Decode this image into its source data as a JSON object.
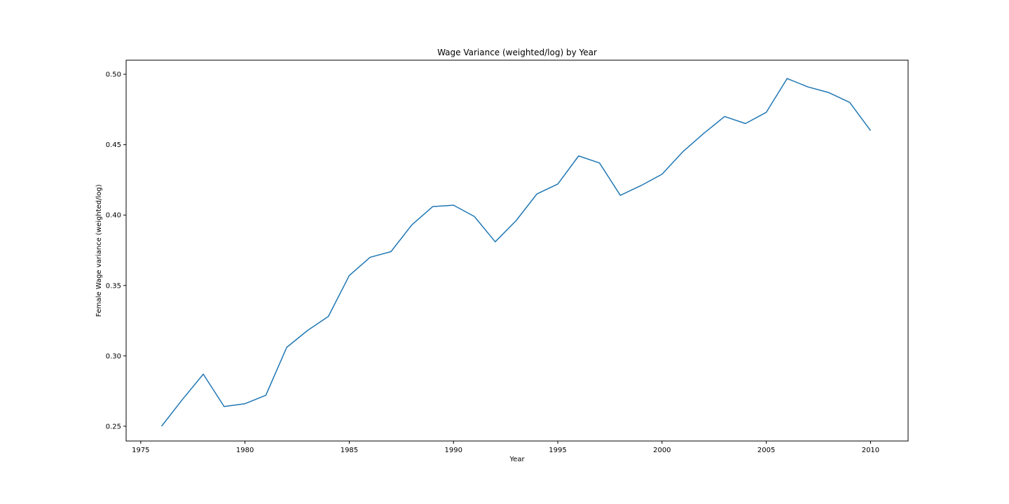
{
  "chart_data": {
    "type": "line",
    "title": "Wage Variance (weighted/log) by Year",
    "xlabel": "Year",
    "ylabel": "Female Wage variance (weighted/log)",
    "xlim": [
      1974.3,
      2011.8
    ],
    "ylim": [
      0.2395,
      0.51
    ],
    "xticks": [
      1975,
      1980,
      1985,
      1990,
      1995,
      2000,
      2005,
      2010
    ],
    "xtick_labels": [
      "1975",
      "1980",
      "1985",
      "1990",
      "1995",
      "2000",
      "2005",
      "2010"
    ],
    "yticks": [
      0.25,
      0.3,
      0.35,
      0.4,
      0.45,
      0.5
    ],
    "ytick_labels": [
      "0.25",
      "0.30",
      "0.35",
      "0.40",
      "0.45",
      "0.50"
    ],
    "grid": false,
    "legend": "none",
    "series": [
      {
        "color": "#1f77b4",
        "x": [
          1976,
          1977,
          1978,
          1979,
          1980,
          1981,
          1982,
          1983,
          1984,
          1985,
          1986,
          1987,
          1988,
          1989,
          1990,
          1991,
          1992,
          1993,
          1994,
          1995,
          1996,
          1997,
          1998,
          1999,
          2000,
          2001,
          2002,
          2003,
          2004,
          2005,
          2006,
          2007,
          2008,
          2009,
          2010
        ],
        "values": [
          0.25,
          0.269,
          0.287,
          0.264,
          0.266,
          0.272,
          0.306,
          0.318,
          0.328,
          0.357,
          0.37,
          0.374,
          0.393,
          0.406,
          0.407,
          0.399,
          0.381,
          0.396,
          0.415,
          0.422,
          0.442,
          0.437,
          0.414,
          0.421,
          0.429,
          0.445,
          0.458,
          0.47,
          0.465,
          0.473,
          0.497,
          0.491,
          0.487,
          0.48,
          0.46
        ]
      }
    ]
  }
}
